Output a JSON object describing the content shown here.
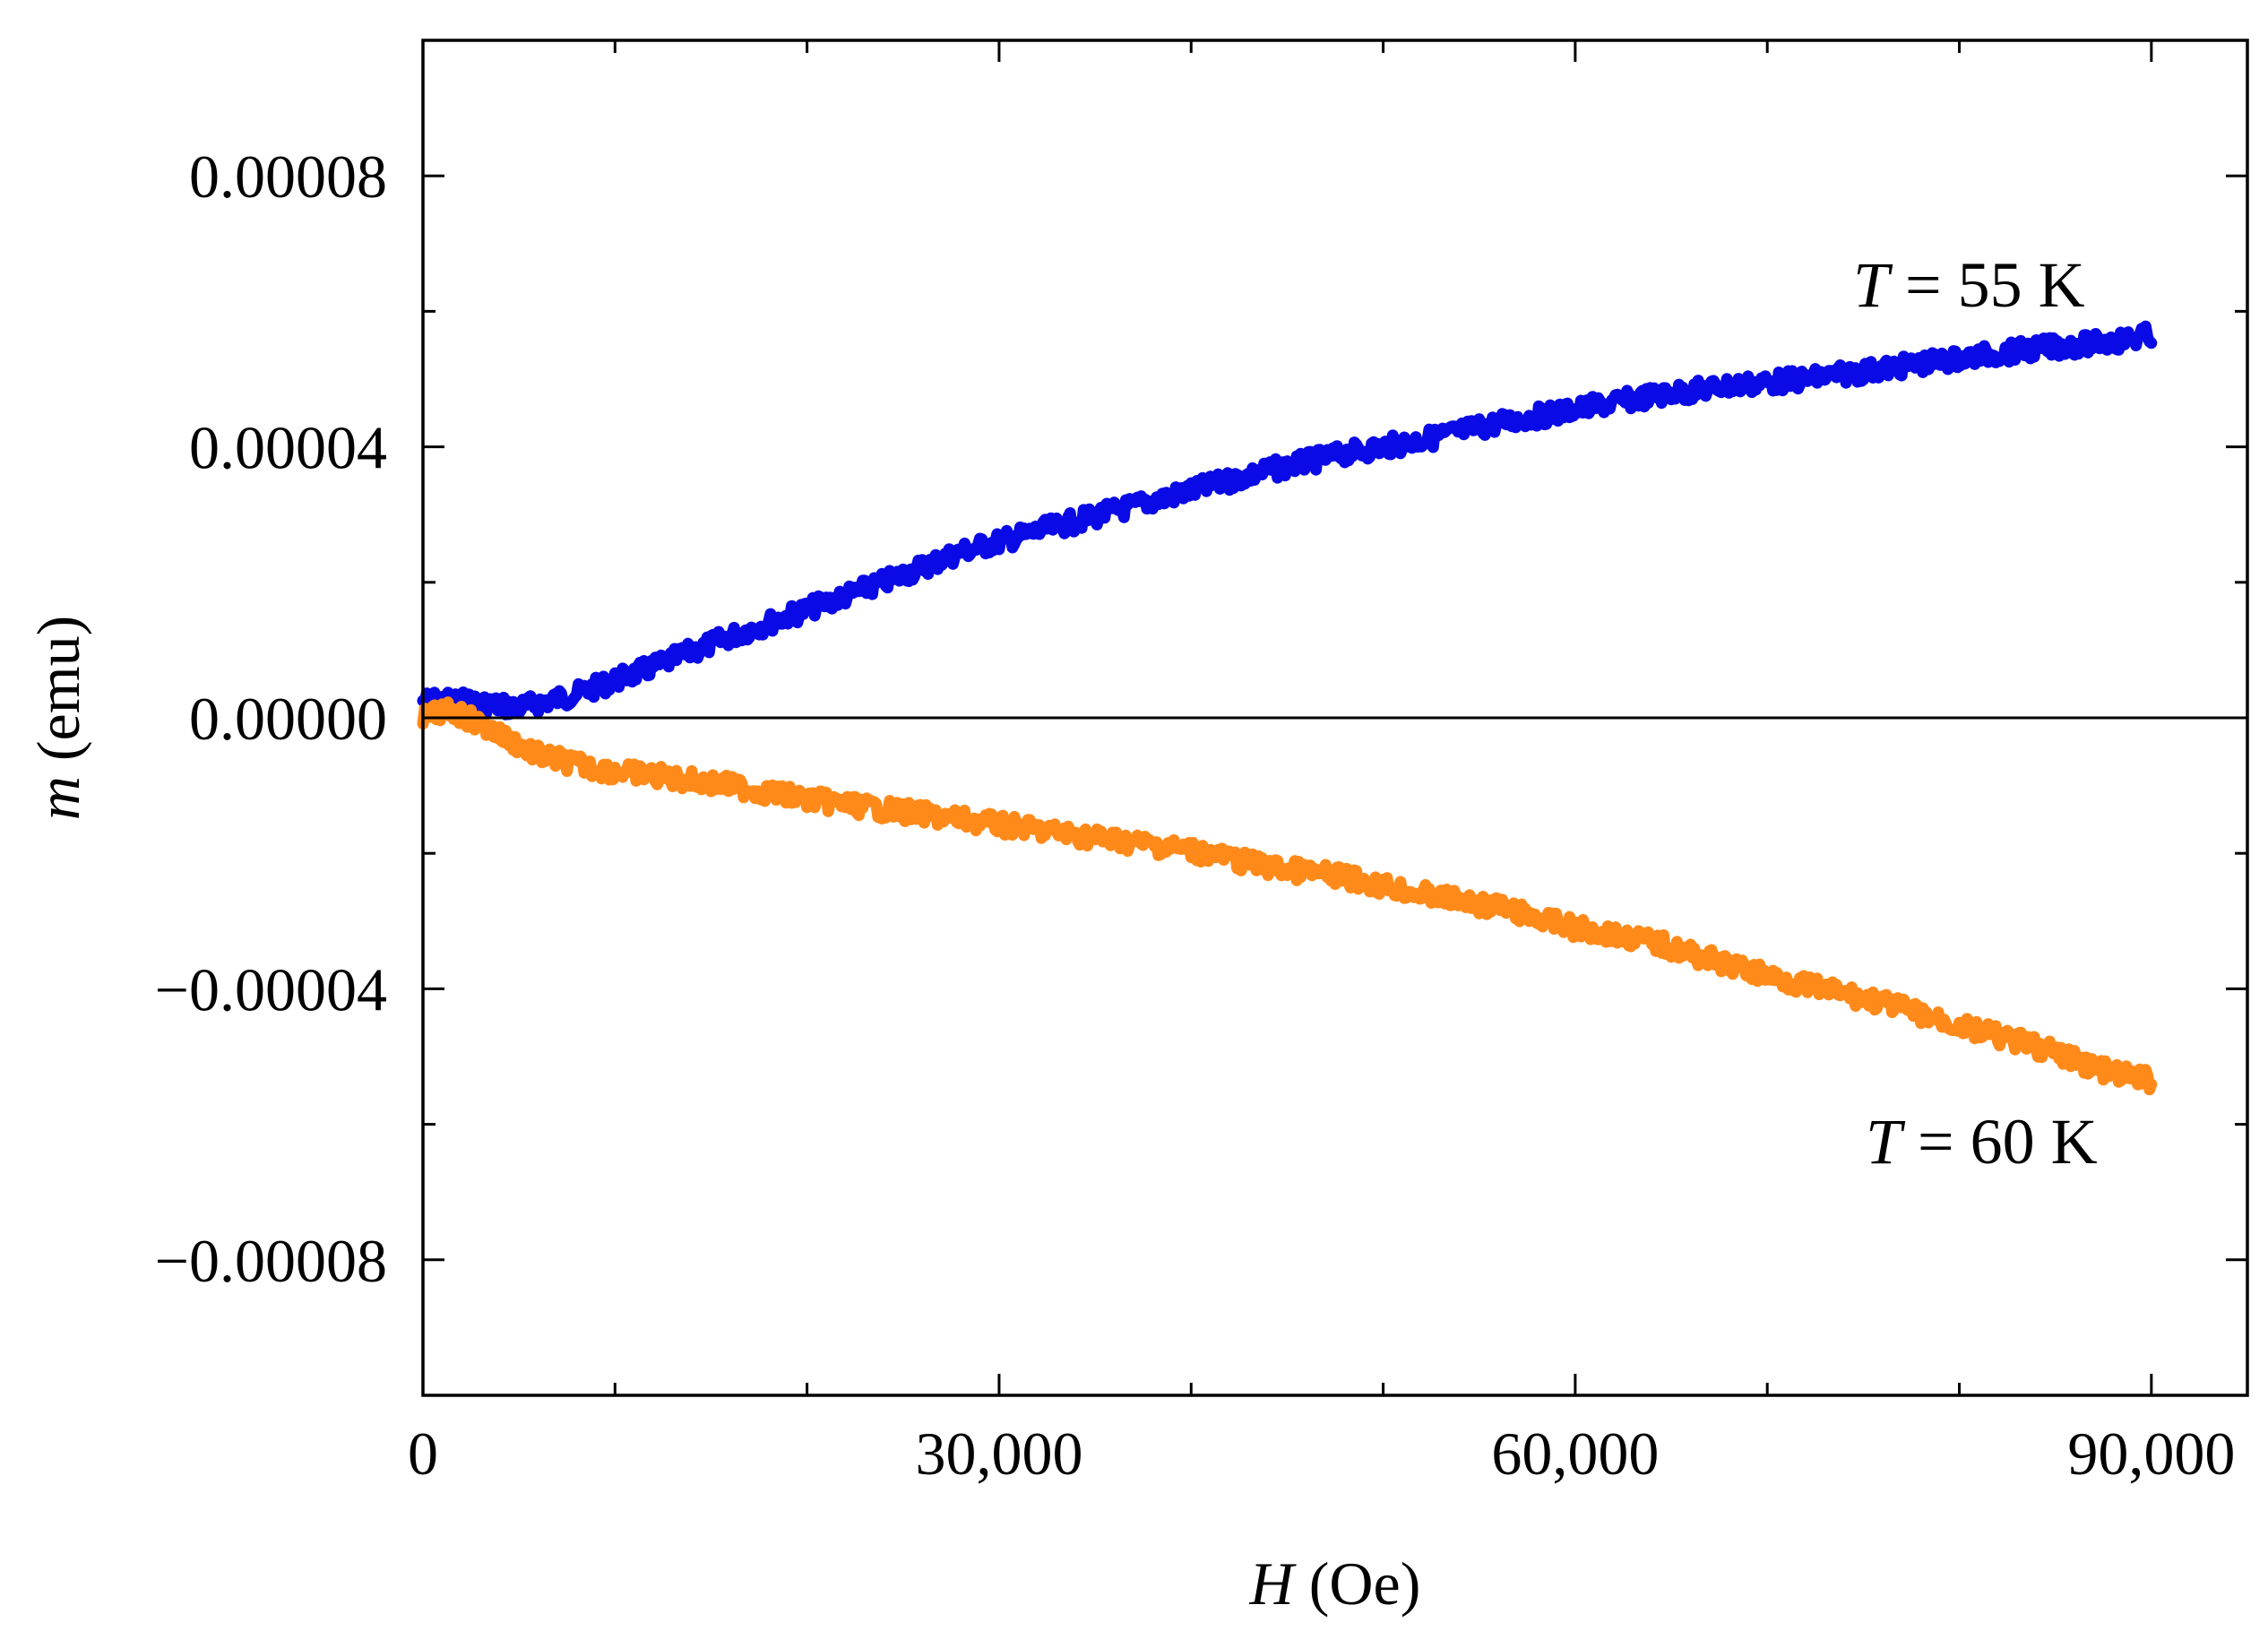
{
  "chart_data": {
    "type": "line",
    "title": "",
    "xlabel_var": "H",
    "xlabel_unit": " (Oe)",
    "ylabel_var": "m",
    "ylabel_unit": " (emu)",
    "xlim": [
      0,
      95000
    ],
    "ylim": [
      -0.0001,
      0.0001
    ],
    "grid": false,
    "xticks": [
      0,
      30000,
      60000,
      90000
    ],
    "xtick_labels": [
      "0",
      "30,000",
      "60,000",
      "90,000"
    ],
    "xminor": [
      10000,
      20000,
      40000,
      50000,
      70000,
      80000
    ],
    "yticks": [
      8e-05,
      4e-05,
      0.0,
      -4e-05,
      -8e-05
    ],
    "ytick_labels": [
      "0.00008",
      "0.00004",
      "0.00000",
      "−0.00004",
      "−0.00008"
    ],
    "yminor": [
      6e-05,
      2e-05,
      -2e-05,
      -6e-05
    ],
    "zero_line": 0,
    "series": [
      {
        "name": "T = 55 K",
        "color": "#0a0ae6",
        "x": [
          0,
          2000,
          5000,
          8000,
          12000,
          16000,
          20000,
          24000,
          28000,
          32000,
          36000,
          40000,
          44000,
          48000,
          52000,
          56000,
          60000,
          64000,
          68000,
          72000,
          76000,
          80000,
          84000,
          88000,
          90000
        ],
        "y": [
          2.5e-06,
          2.5e-06,
          1.5e-06,
          3.5e-06,
          7.5e-06,
          1.2e-05,
          1.6e-05,
          2e-05,
          2.45e-05,
          2.75e-05,
          3.05e-05,
          3.35e-05,
          3.65e-05,
          3.9e-05,
          4.1e-05,
          4.35e-05,
          4.55e-05,
          4.75e-05,
          4.9e-05,
          5e-05,
          5.15e-05,
          5.3e-05,
          5.45e-05,
          5.55e-05,
          5.65e-05
        ]
      },
      {
        "name": "T = 60 K",
        "color": "#ff8a1a",
        "x": [
          0,
          1000,
          2000,
          4000,
          6000,
          9000,
          12000,
          16000,
          20000,
          24000,
          28000,
          32000,
          36000,
          40000,
          44000,
          48000,
          52000,
          56000,
          60000,
          64000,
          68000,
          72000,
          76000,
          80000,
          84000,
          88000,
          90000
        ],
        "y": [
          0.0,
          1e-06,
          5e-07,
          -2.5e-06,
          -5.5e-06,
          -7.5e-06,
          -8.5e-06,
          -1e-05,
          -1.2e-05,
          -1.35e-05,
          -1.5e-05,
          -1.65e-05,
          -1.8e-05,
          -1.95e-05,
          -2.2e-05,
          -2.35e-05,
          -2.6e-05,
          -2.8e-05,
          -3.1e-05,
          -3.3e-05,
          -3.65e-05,
          -3.95e-05,
          -4.2e-05,
          -4.55e-05,
          -4.85e-05,
          -5.25e-05,
          -5.35e-05
        ]
      }
    ],
    "annotations": [
      {
        "var": "T",
        "text": " = 55 K"
      },
      {
        "var": "T",
        "text": " = 60 K"
      }
    ]
  }
}
